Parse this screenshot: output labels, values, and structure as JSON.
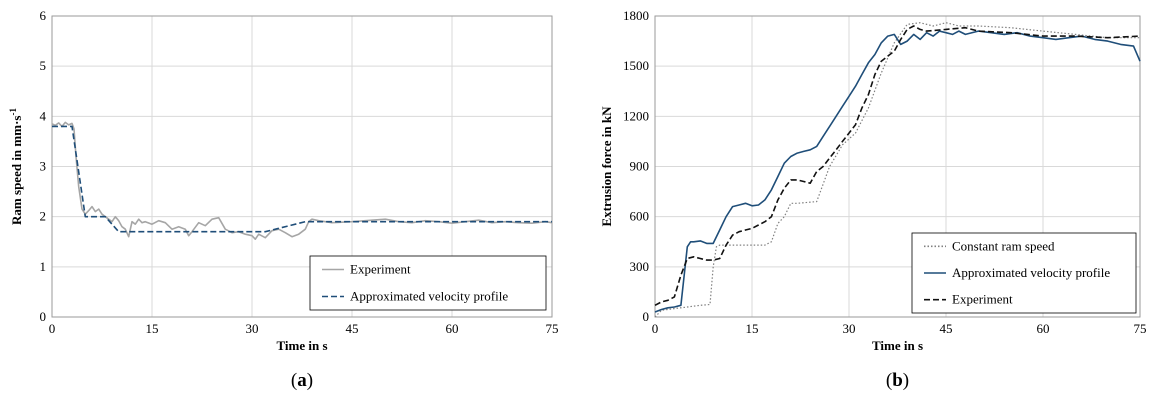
{
  "chart_data": [
    {
      "type": "line",
      "panel_label": "a",
      "xlabel": "Time in s",
      "ylabel_main": "Ram speed  in mm·s",
      "ylabel_sup": "-1",
      "xlim": [
        0,
        75
      ],
      "ylim": [
        0,
        6
      ],
      "xticks": [
        "0",
        "15",
        "30",
        "45",
        "60",
        "75"
      ],
      "yticks": [
        "0",
        "1",
        "2",
        "3",
        "4",
        "5",
        "6"
      ],
      "grid": true,
      "legend_position": "bottom-right",
      "series": [
        {
          "name": "Experiment",
          "color": "#a6a6a6",
          "style": "solid",
          "x": [
            0,
            0.5,
            1,
            1.5,
            2,
            2.5,
            3,
            3.3,
            3.6,
            4,
            4.5,
            5,
            5.5,
            6,
            6.5,
            7,
            7.5,
            8,
            8.5,
            9,
            9.5,
            10,
            10.5,
            11,
            11.5,
            12,
            12.5,
            13,
            13.5,
            14,
            15,
            16,
            17,
            18,
            19,
            20,
            20.5,
            21,
            22,
            23,
            24,
            25,
            26,
            27,
            28,
            29,
            30,
            30.5,
            31,
            32,
            33,
            34,
            35,
            36,
            37,
            38,
            38.5,
            39,
            40,
            42,
            45,
            48,
            50,
            52,
            54,
            56,
            58,
            60,
            62,
            64,
            66,
            68,
            70,
            72,
            74,
            75
          ],
          "y": [
            3.85,
            3.82,
            3.87,
            3.8,
            3.88,
            3.83,
            3.86,
            3.75,
            3.2,
            2.6,
            2.15,
            2.05,
            2.12,
            2.2,
            2.1,
            2.15,
            2.05,
            2.0,
            1.95,
            1.9,
            2.0,
            1.92,
            1.8,
            1.75,
            1.6,
            1.9,
            1.85,
            1.95,
            1.88,
            1.9,
            1.85,
            1.92,
            1.88,
            1.75,
            1.8,
            1.75,
            1.62,
            1.7,
            1.88,
            1.82,
            1.95,
            1.98,
            1.75,
            1.68,
            1.7,
            1.65,
            1.62,
            1.55,
            1.65,
            1.58,
            1.72,
            1.75,
            1.68,
            1.6,
            1.65,
            1.75,
            1.9,
            1.95,
            1.92,
            1.88,
            1.9,
            1.93,
            1.95,
            1.9,
            1.88,
            1.92,
            1.9,
            1.87,
            1.9,
            1.93,
            1.88,
            1.9,
            1.88,
            1.87,
            1.9,
            1.88
          ]
        },
        {
          "name": "Approximated velocity profile",
          "color": "#1f4e79",
          "style": "dashed",
          "x": [
            0,
            3,
            5,
            8,
            10,
            32,
            38,
            40,
            45,
            60,
            75
          ],
          "y": [
            3.8,
            3.8,
            2.0,
            2.0,
            1.7,
            1.7,
            1.9,
            1.9,
            1.9,
            1.9,
            1.9
          ]
        }
      ]
    },
    {
      "type": "line",
      "panel_label": "b",
      "xlabel": "Time in s",
      "ylabel": "Extrusion force in kN",
      "xlim": [
        0,
        75
      ],
      "ylim": [
        0,
        1800
      ],
      "xticks": [
        "0",
        "15",
        "30",
        "45",
        "60",
        "75"
      ],
      "yticks": [
        "0",
        "300",
        "600",
        "900",
        "1200",
        "1500",
        "1800"
      ],
      "grid": true,
      "legend_position": "bottom-right",
      "series": [
        {
          "name": "Constant ram speed",
          "color": "#808080",
          "style": "dotted",
          "x": [
            0,
            1,
            3,
            5,
            7,
            8.5,
            9,
            9.5,
            10,
            12,
            15,
            17,
            18,
            19,
            20,
            21,
            22,
            25,
            27,
            29,
            31,
            33,
            35,
            37,
            39,
            41,
            43,
            45,
            47,
            50,
            55,
            60,
            65,
            70,
            75
          ],
          "y": [
            0,
            40,
            50,
            60,
            70,
            75,
            300,
            420,
            430,
            430,
            430,
            430,
            450,
            560,
            600,
            680,
            680,
            690,
            900,
            1030,
            1100,
            1250,
            1460,
            1640,
            1750,
            1760,
            1740,
            1760,
            1740,
            1740,
            1730,
            1710,
            1690,
            1670,
            1670
          ]
        },
        {
          "name": "Approximated velocity profile",
          "color": "#1f4e79",
          "style": "solid",
          "x": [
            0,
            1,
            2,
            3,
            4,
            5,
            5.5,
            6,
            7,
            8,
            9,
            10,
            11,
            12,
            13,
            14,
            15,
            16,
            17,
            18,
            19,
            20,
            21,
            22,
            23,
            24,
            25,
            26,
            27,
            28,
            29,
            30,
            31,
            32,
            33,
            34,
            35,
            36,
            37,
            38,
            39,
            40,
            41,
            42,
            43,
            44,
            45,
            46,
            47,
            48,
            50,
            52,
            54,
            56,
            58,
            60,
            62,
            64,
            66,
            68,
            70,
            72,
            74,
            75
          ],
          "y": [
            30,
            45,
            55,
            60,
            70,
            420,
            450,
            450,
            455,
            440,
            440,
            520,
            600,
            660,
            670,
            680,
            665,
            670,
            700,
            760,
            840,
            920,
            960,
            980,
            990,
            1000,
            1020,
            1080,
            1140,
            1200,
            1260,
            1320,
            1380,
            1450,
            1520,
            1570,
            1640,
            1680,
            1690,
            1630,
            1650,
            1690,
            1660,
            1700,
            1680,
            1710,
            1700,
            1690,
            1710,
            1690,
            1710,
            1700,
            1690,
            1700,
            1680,
            1670,
            1660,
            1670,
            1680,
            1660,
            1650,
            1630,
            1620,
            1530
          ]
        },
        {
          "name": "Experiment",
          "color": "#111111",
          "style": "dashed",
          "x": [
            0,
            1,
            2,
            3,
            4,
            5,
            6,
            7,
            8,
            9,
            10,
            11,
            12,
            13,
            14,
            15,
            16,
            17,
            18,
            19,
            20,
            21,
            22,
            23,
            24,
            25,
            26,
            27,
            28,
            29,
            30,
            31,
            32,
            33,
            34,
            35,
            36,
            37,
            38,
            39,
            40,
            41,
            42,
            45,
            48,
            50,
            55,
            60,
            65,
            70,
            75
          ],
          "y": [
            70,
            90,
            100,
            120,
            250,
            350,
            360,
            350,
            340,
            340,
            350,
            430,
            490,
            510,
            520,
            530,
            550,
            570,
            600,
            700,
            770,
            820,
            820,
            810,
            800,
            870,
            900,
            950,
            1000,
            1050,
            1100,
            1150,
            1250,
            1330,
            1450,
            1530,
            1560,
            1590,
            1660,
            1720,
            1740,
            1720,
            1710,
            1720,
            1730,
            1710,
            1700,
            1680,
            1680,
            1670,
            1680
          ]
        }
      ]
    }
  ]
}
